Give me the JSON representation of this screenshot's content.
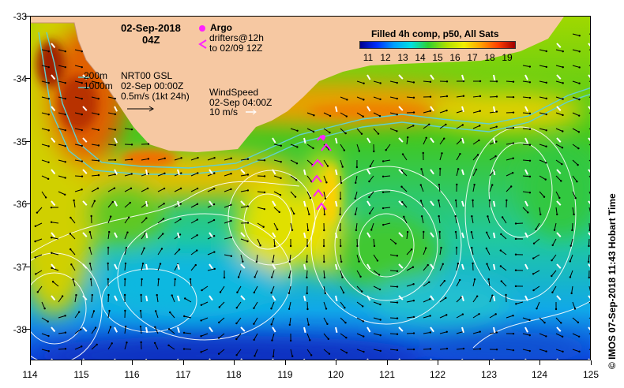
{
  "map": {
    "date_title": "02-Sep-2018",
    "time_title": "04Z",
    "y_ticks": [
      "-33",
      "-34",
      "-35",
      "-36",
      "-37",
      "-38"
    ],
    "x_ticks": [
      "114",
      "115",
      "116",
      "117",
      "118",
      "119",
      "120",
      "121",
      "122",
      "123",
      "124",
      "125"
    ],
    "lat_range": [
      -33,
      -38.5
    ],
    "lon_range": [
      114,
      125
    ]
  },
  "legend": {
    "argo_label": "Argo",
    "drifters_label": "drifters@12h",
    "drifters_date": "to 02/09 12Z",
    "depth_200": "200m",
    "depth_1000": "1000m",
    "gsl_title": "NRT00 GSL",
    "gsl_date": "02-Sep 00:00Z",
    "gsl_scale": "0.5m/s (1kt 24h)",
    "wind_title": "WindSpeed",
    "wind_date": "02-Sep 04:00Z",
    "wind_scale": "10 m/s"
  },
  "colorbar": {
    "title": "Filled 4h comp, p50, All Sats",
    "ticks": [
      "11",
      "12",
      "13",
      "14",
      "15",
      "16",
      "17",
      "18",
      "19"
    ],
    "colors": [
      "#000090",
      "#0030ff",
      "#00a0ff",
      "#00e0e0",
      "#30d030",
      "#b0e000",
      "#f0f000",
      "#ffa000",
      "#ff4000",
      "#a00000"
    ]
  },
  "footer": {
    "side_note": "© IMOS 07-Sep-2018 11:43 Hobart Time"
  },
  "colors": {
    "land": "#f6c8a2",
    "argo": "#ff20ff",
    "contour": "#ffffff",
    "isobath": "#60d0d0"
  }
}
